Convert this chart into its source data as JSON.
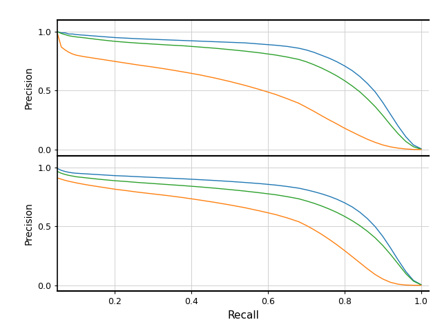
{
  "xlabel": "Recall",
  "ylabel": "Precision",
  "colors": {
    "blue": "#1f77b4",
    "green": "#2ca02c",
    "orange": "#ff7f0e"
  },
  "grid_color": "#d0d0d0",
  "line_width": 1.0,
  "top_curves": {
    "blue": {
      "recall": [
        0.05,
        0.06,
        0.07,
        0.08,
        0.09,
        0.1,
        0.12,
        0.14,
        0.16,
        0.18,
        0.2,
        0.23,
        0.26,
        0.3,
        0.34,
        0.38,
        0.42,
        0.46,
        0.5,
        0.54,
        0.58,
        0.62,
        0.65,
        0.68,
        0.7,
        0.72,
        0.74,
        0.76,
        0.78,
        0.8,
        0.82,
        0.84,
        0.86,
        0.88,
        0.9,
        0.92,
        0.94,
        0.96,
        0.98,
        1.0
      ],
      "precision": [
        1.0,
        0.99,
        0.99,
        0.98,
        0.98,
        0.975,
        0.97,
        0.965,
        0.96,
        0.955,
        0.95,
        0.945,
        0.94,
        0.935,
        0.93,
        0.925,
        0.92,
        0.915,
        0.91,
        0.905,
        0.895,
        0.885,
        0.875,
        0.86,
        0.845,
        0.825,
        0.8,
        0.775,
        0.745,
        0.71,
        0.67,
        0.62,
        0.56,
        0.49,
        0.4,
        0.3,
        0.2,
        0.11,
        0.04,
        0.008
      ]
    },
    "green": {
      "recall": [
        0.05,
        0.06,
        0.07,
        0.08,
        0.09,
        0.1,
        0.12,
        0.14,
        0.16,
        0.18,
        0.2,
        0.23,
        0.26,
        0.3,
        0.34,
        0.38,
        0.42,
        0.46,
        0.5,
        0.54,
        0.58,
        0.62,
        0.65,
        0.68,
        0.7,
        0.72,
        0.74,
        0.76,
        0.78,
        0.8,
        0.82,
        0.84,
        0.86,
        0.88,
        0.9,
        0.92,
        0.94,
        0.96,
        0.98,
        1.0
      ],
      "precision": [
        1.0,
        0.985,
        0.975,
        0.965,
        0.96,
        0.955,
        0.948,
        0.94,
        0.932,
        0.925,
        0.918,
        0.91,
        0.903,
        0.895,
        0.887,
        0.88,
        0.87,
        0.86,
        0.848,
        0.835,
        0.82,
        0.802,
        0.785,
        0.765,
        0.745,
        0.72,
        0.692,
        0.66,
        0.625,
        0.585,
        0.54,
        0.49,
        0.43,
        0.365,
        0.29,
        0.21,
        0.135,
        0.07,
        0.025,
        0.004
      ]
    },
    "orange": {
      "recall": [
        0.05,
        0.06,
        0.07,
        0.08,
        0.09,
        0.1,
        0.12,
        0.14,
        0.16,
        0.18,
        0.2,
        0.23,
        0.26,
        0.3,
        0.34,
        0.38,
        0.42,
        0.46,
        0.5,
        0.54,
        0.58,
        0.62,
        0.65,
        0.68,
        0.7,
        0.72,
        0.74,
        0.76,
        0.78,
        0.8,
        0.82,
        0.84,
        0.86,
        0.88,
        0.9,
        0.92,
        0.94,
        0.96,
        0.98,
        1.0
      ],
      "precision": [
        0.985,
        0.87,
        0.845,
        0.825,
        0.81,
        0.8,
        0.788,
        0.778,
        0.768,
        0.758,
        0.748,
        0.733,
        0.718,
        0.7,
        0.68,
        0.658,
        0.635,
        0.608,
        0.578,
        0.545,
        0.508,
        0.468,
        0.432,
        0.394,
        0.36,
        0.325,
        0.288,
        0.252,
        0.218,
        0.182,
        0.15,
        0.118,
        0.088,
        0.062,
        0.04,
        0.024,
        0.013,
        0.006,
        0.002,
        0.001
      ]
    }
  },
  "bottom_curves": {
    "blue": {
      "recall": [
        0.05,
        0.06,
        0.07,
        0.08,
        0.09,
        0.1,
        0.12,
        0.14,
        0.16,
        0.18,
        0.2,
        0.23,
        0.26,
        0.3,
        0.34,
        0.38,
        0.42,
        0.46,
        0.5,
        0.54,
        0.58,
        0.62,
        0.65,
        0.68,
        0.7,
        0.72,
        0.74,
        0.76,
        0.78,
        0.8,
        0.82,
        0.84,
        0.86,
        0.88,
        0.9,
        0.92,
        0.94,
        0.96,
        0.98,
        1.0
      ],
      "precision": [
        0.99,
        0.975,
        0.965,
        0.958,
        0.953,
        0.95,
        0.946,
        0.942,
        0.938,
        0.934,
        0.93,
        0.926,
        0.921,
        0.915,
        0.909,
        0.903,
        0.896,
        0.889,
        0.881,
        0.872,
        0.862,
        0.85,
        0.838,
        0.824,
        0.81,
        0.794,
        0.776,
        0.755,
        0.73,
        0.7,
        0.665,
        0.62,
        0.565,
        0.498,
        0.415,
        0.318,
        0.215,
        0.118,
        0.042,
        0.006
      ]
    },
    "green": {
      "recall": [
        0.05,
        0.06,
        0.07,
        0.08,
        0.09,
        0.1,
        0.12,
        0.14,
        0.16,
        0.18,
        0.2,
        0.23,
        0.26,
        0.3,
        0.34,
        0.38,
        0.42,
        0.46,
        0.5,
        0.54,
        0.58,
        0.62,
        0.65,
        0.68,
        0.7,
        0.72,
        0.74,
        0.76,
        0.78,
        0.8,
        0.82,
        0.84,
        0.86,
        0.88,
        0.9,
        0.92,
        0.94,
        0.96,
        0.98,
        1.0
      ],
      "precision": [
        0.965,
        0.95,
        0.94,
        0.932,
        0.926,
        0.92,
        0.913,
        0.906,
        0.899,
        0.893,
        0.887,
        0.88,
        0.872,
        0.863,
        0.854,
        0.845,
        0.835,
        0.824,
        0.812,
        0.799,
        0.784,
        0.768,
        0.752,
        0.734,
        0.716,
        0.696,
        0.673,
        0.647,
        0.618,
        0.585,
        0.548,
        0.506,
        0.458,
        0.403,
        0.338,
        0.263,
        0.182,
        0.1,
        0.036,
        0.005
      ]
    },
    "orange": {
      "recall": [
        0.05,
        0.06,
        0.07,
        0.08,
        0.09,
        0.1,
        0.12,
        0.14,
        0.16,
        0.18,
        0.2,
        0.23,
        0.26,
        0.3,
        0.34,
        0.38,
        0.42,
        0.46,
        0.5,
        0.54,
        0.58,
        0.62,
        0.65,
        0.68,
        0.7,
        0.72,
        0.74,
        0.76,
        0.78,
        0.8,
        0.82,
        0.84,
        0.86,
        0.88,
        0.9,
        0.92,
        0.94,
        0.96,
        0.98,
        1.0
      ],
      "precision": [
        0.91,
        0.9,
        0.89,
        0.882,
        0.875,
        0.868,
        0.856,
        0.845,
        0.835,
        0.825,
        0.815,
        0.803,
        0.79,
        0.775,
        0.76,
        0.743,
        0.724,
        0.704,
        0.682,
        0.658,
        0.63,
        0.6,
        0.572,
        0.54,
        0.508,
        0.472,
        0.433,
        0.39,
        0.344,
        0.295,
        0.244,
        0.192,
        0.14,
        0.092,
        0.054,
        0.026,
        0.01,
        0.003,
        0.001,
        0.001
      ]
    }
  }
}
